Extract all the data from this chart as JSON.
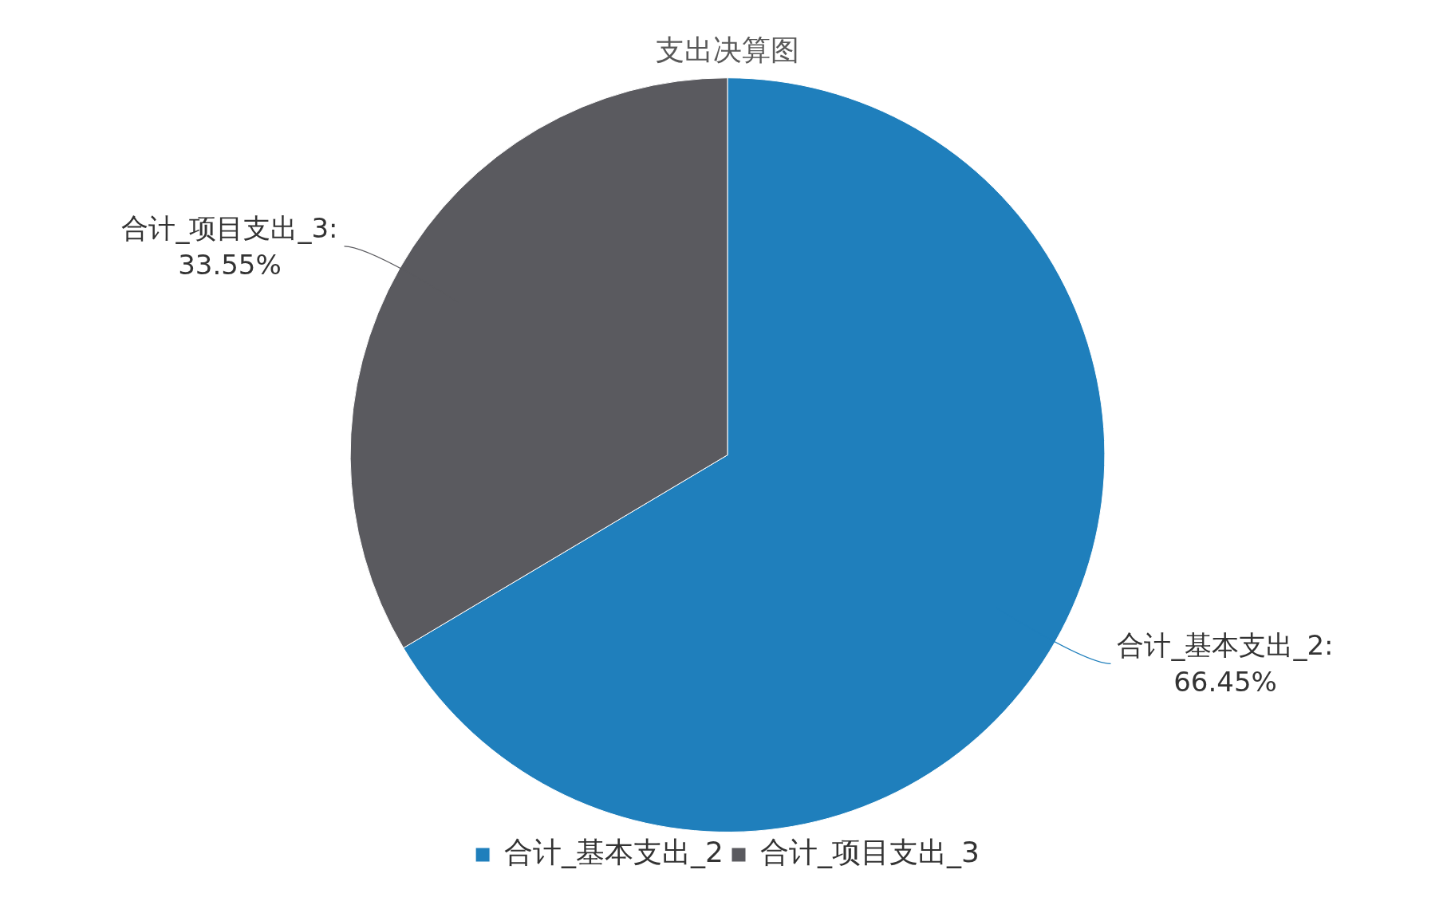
{
  "chart_data": {
    "type": "pie",
    "title": "支出决算图",
    "categories": [
      "合计_基本支出_2",
      "合计_项目支出_3"
    ],
    "values": [
      66.45,
      33.55
    ],
    "colors": [
      "#1f7fbc",
      "#5a5a5f"
    ],
    "value_labels": [
      "合计_基本支出_2:\n66.45%",
      "合计_项目支出_3:\n33.55%"
    ],
    "legend": "bottom"
  }
}
